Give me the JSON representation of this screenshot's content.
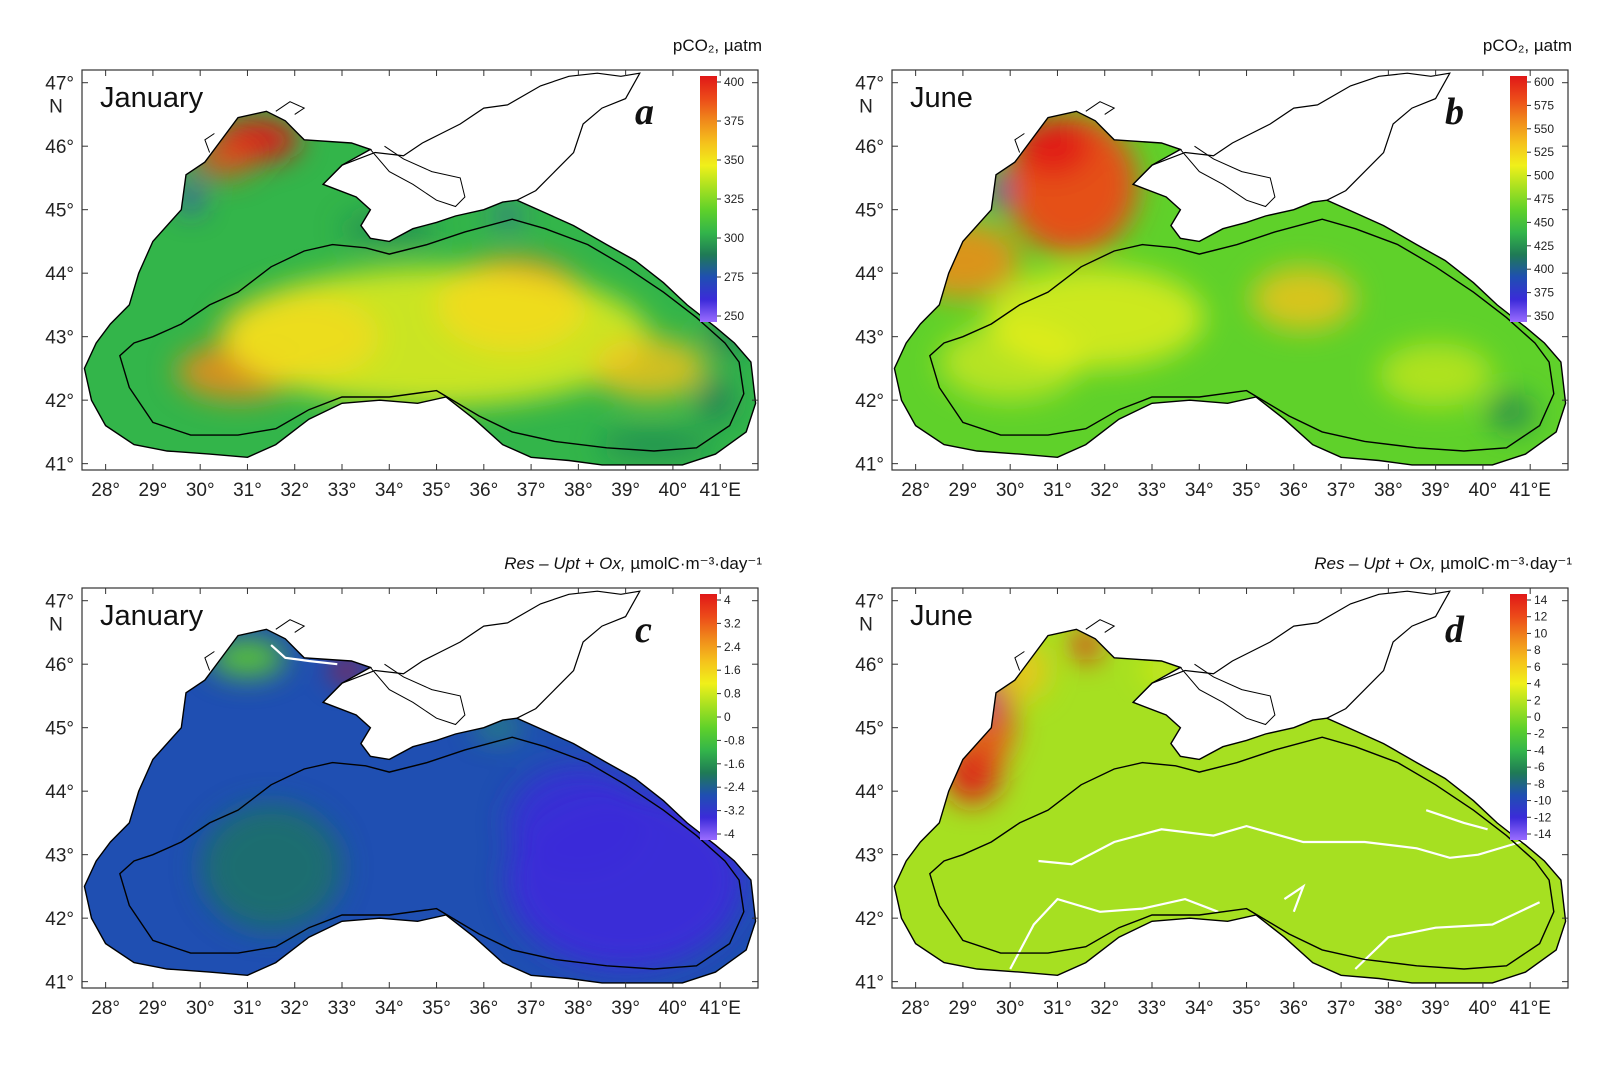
{
  "panels": [
    {
      "id": "a",
      "letter": "a",
      "month": "January",
      "unit_title_html": "pCO<sub>2</sub>, µatm",
      "unit_parts": {
        "italic": "",
        "plain": "pCO₂, µatm"
      },
      "colorbar_ticks": [
        "400",
        "375",
        "350",
        "325",
        "300",
        "275",
        "250"
      ],
      "colorbar_colors": [
        "#9b6dff",
        "#3b2bd9",
        "#1f4fb2",
        "#1f7a55",
        "#33b54a",
        "#5fd12a",
        "#a6e021",
        "#f0f01a",
        "#f5c21c",
        "#f08a1b",
        "#ec4a19",
        "#e01818"
      ],
      "field": "pco2_jan"
    },
    {
      "id": "b",
      "letter": "b",
      "month": "June",
      "unit_title_html": "pCO<sub>2</sub>, µatm",
      "unit_parts": {
        "italic": "",
        "plain": "pCO₂, µatm"
      },
      "colorbar_ticks": [
        "600",
        "575",
        "550",
        "525",
        "500",
        "475",
        "450",
        "425",
        "400",
        "375",
        "350"
      ],
      "colorbar_colors": [
        "#9b6dff",
        "#3b2bd9",
        "#1f4fb2",
        "#1f7a55",
        "#33b54a",
        "#5fd12a",
        "#a6e021",
        "#f0f01a",
        "#f5c21c",
        "#f08a1b",
        "#ec4a19",
        "#e01818"
      ],
      "field": "pco2_jun"
    },
    {
      "id": "c",
      "letter": "c",
      "month": "January",
      "unit_parts": {
        "italic": "Res – Upt + Ox,",
        "plain": " µmolC·m⁻³·day⁻¹"
      },
      "colorbar_ticks": [
        "4",
        "3.2",
        "2.4",
        "1.6",
        "0.8",
        "0",
        "-0.8",
        "-1.6",
        "-2.4",
        "-3.2",
        "-4"
      ],
      "colorbar_colors": [
        "#9b6dff",
        "#3b2bd9",
        "#1f4fb2",
        "#1f7a55",
        "#33b54a",
        "#5fd12a",
        "#a6e021",
        "#f0f01a",
        "#f5c21c",
        "#f08a1b",
        "#ec4a19",
        "#e01818"
      ],
      "field": "flux_jan"
    },
    {
      "id": "d",
      "letter": "d",
      "month": "June",
      "unit_parts": {
        "italic": "Res – Upt + Ox,",
        "plain": " µmolC·m⁻³·day⁻¹"
      },
      "colorbar_ticks": [
        "14",
        "12",
        "10",
        "8",
        "6",
        "4",
        "2",
        "0",
        "-2",
        "-4",
        "-6",
        "-8",
        "-10",
        "-12",
        "-14"
      ],
      "colorbar_colors": [
        "#9b6dff",
        "#3b2bd9",
        "#1f4fb2",
        "#1f7a55",
        "#33b54a",
        "#5fd12a",
        "#a6e021",
        "#f0f01a",
        "#f5c21c",
        "#f08a1b",
        "#ec4a19",
        "#e01818"
      ],
      "field": "flux_jun"
    }
  ],
  "axes": {
    "x_ticks": [
      "28°",
      "29°",
      "30°",
      "31°",
      "32°",
      "33°",
      "34°",
      "35°",
      "36°",
      "37°",
      "38°",
      "39°",
      "40°",
      "41°E"
    ],
    "y_ticks": [
      "47°",
      "46°",
      "45°",
      "44°",
      "43°",
      "42°",
      "41°"
    ],
    "y_hemisphere": "N",
    "x_range": [
      27.5,
      41.8
    ],
    "y_range": [
      40.9,
      47.2
    ]
  },
  "colors": {
    "land_outline": "#000000",
    "shelf_contour": "#000000",
    "zero_contour": "#ffffff"
  }
}
